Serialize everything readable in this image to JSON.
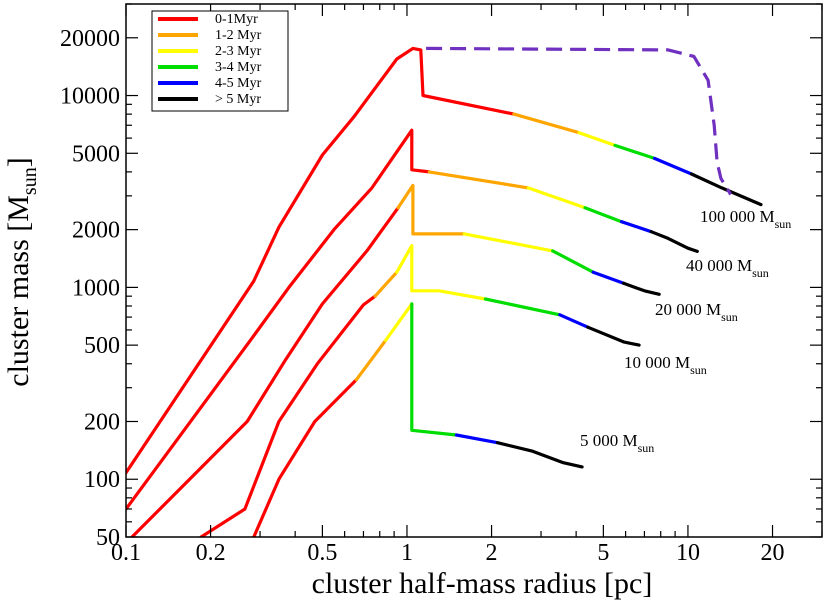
{
  "chart_data": {
    "type": "line",
    "xlabel": "cluster half-mass radius [pc]",
    "ylabel_main": "cluster mass [M",
    "ylabel_sub": "sun",
    "ylabel_close": "]",
    "x_scale": "log",
    "y_scale": "log",
    "xlim": [
      0.1,
      30
    ],
    "ylim": [
      50,
      30000
    ],
    "xticks": [
      {
        "v": 0.1,
        "label": "0.1"
      },
      {
        "v": 0.2,
        "label": "0.2"
      },
      {
        "v": 0.5,
        "label": "0.5"
      },
      {
        "v": 1,
        "label": "1"
      },
      {
        "v": 2,
        "label": "2"
      },
      {
        "v": 5,
        "label": "5"
      },
      {
        "v": 10,
        "label": "10"
      },
      {
        "v": 20,
        "label": "20"
      }
    ],
    "yticks": [
      {
        "v": 50,
        "label": "50"
      },
      {
        "v": 100,
        "label": "100"
      },
      {
        "v": 200,
        "label": "200"
      },
      {
        "v": 500,
        "label": "500"
      },
      {
        "v": 1000,
        "label": "1000"
      },
      {
        "v": 2000,
        "label": "2000"
      },
      {
        "v": 5000,
        "label": "5000"
      },
      {
        "v": 10000,
        "label": "10000"
      },
      {
        "v": 20000,
        "label": "20000"
      }
    ],
    "legend_position": "top-left",
    "legend": [
      {
        "label": "0-1Myr",
        "color": "#ff0000"
      },
      {
        "label": "1-2 Myr",
        "color": "#ffa500"
      },
      {
        "label": "2-3 Myr",
        "color": "#ffff00"
      },
      {
        "label": "3-4 Myr",
        "color": "#00dd00"
      },
      {
        "label": "4-5 Myr",
        "color": "#0000ff"
      },
      {
        "label": "> 5 Myr",
        "color": "#000000"
      }
    ],
    "series": [
      {
        "name": "100 000 Msun",
        "label_main": "100 000 M",
        "label_sub": "sun",
        "segments": [
          {
            "color": "#ff0000",
            "points": [
              [
                0.1,
                108
              ],
              [
                0.285,
                1080
              ],
              [
                0.35,
                2060
              ],
              [
                0.5,
                4900
              ],
              [
                0.65,
                7800
              ],
              [
                0.92,
                15500
              ],
              [
                1.05,
                17600
              ],
              [
                1.12,
                17300
              ],
              [
                1.14,
                10000
              ],
              [
                2.4,
                8000
              ]
            ]
          },
          {
            "color": "#ffa500",
            "points": [
              [
                2.4,
                8000
              ],
              [
                4.1,
                6400
              ]
            ]
          },
          {
            "color": "#ffff00",
            "points": [
              [
                4.1,
                6400
              ],
              [
                5.5,
                5500
              ]
            ]
          },
          {
            "color": "#00dd00",
            "points": [
              [
                5.5,
                5500
              ],
              [
                7.6,
                4700
              ]
            ]
          },
          {
            "color": "#0000ff",
            "points": [
              [
                7.6,
                4700
              ],
              [
                10.3,
                3900
              ]
            ]
          },
          {
            "color": "#000000",
            "points": [
              [
                10.3,
                3900
              ],
              [
                13.2,
                3300
              ],
              [
                18.2,
                2700
              ]
            ]
          }
        ]
      },
      {
        "name": "40 000 Msun",
        "label_main": "40 000 M",
        "label_sub": "sun",
        "segments": [
          {
            "color": "#ff0000",
            "points": [
              [
                0.1,
                70
              ],
              [
                0.28,
                540
              ],
              [
                0.38,
                1000
              ],
              [
                0.55,
                2000
              ],
              [
                0.75,
                3300
              ],
              [
                1.04,
                6600
              ],
              [
                1.04,
                4100
              ],
              [
                1.2,
                4000
              ]
            ]
          },
          {
            "color": "#ffa500",
            "points": [
              [
                1.2,
                4000
              ],
              [
                2.7,
                3300
              ]
            ]
          },
          {
            "color": "#ffff00",
            "points": [
              [
                2.7,
                3300
              ],
              [
                4.3,
                2600
              ]
            ]
          },
          {
            "color": "#00dd00",
            "points": [
              [
                4.3,
                2600
              ],
              [
                5.8,
                2200
              ]
            ]
          },
          {
            "color": "#0000ff",
            "points": [
              [
                5.8,
                2200
              ],
              [
                7.4,
                1950
              ]
            ]
          },
          {
            "color": "#000000",
            "points": [
              [
                7.4,
                1950
              ],
              [
                8.5,
                1800
              ],
              [
                10.0,
                1600
              ],
              [
                10.8,
                1540
              ]
            ]
          }
        ]
      },
      {
        "name": "20 000 Msun",
        "label_main": "20 000 M",
        "label_sub": "sun",
        "segments": [
          {
            "color": "#ff0000",
            "points": [
              [
                0.105,
                50
              ],
              [
                0.27,
                200
              ],
              [
                0.37,
                420
              ],
              [
                0.5,
                820
              ],
              [
                0.72,
                1550
              ],
              [
                0.93,
                2600
              ]
            ]
          },
          {
            "color": "#ffa500",
            "points": [
              [
                0.93,
                2600
              ],
              [
                1.05,
                3400
              ],
              [
                1.05,
                1900
              ],
              [
                1.6,
                1900
              ]
            ]
          },
          {
            "color": "#ffff00",
            "points": [
              [
                1.6,
                1900
              ],
              [
                3.3,
                1550
              ]
            ]
          },
          {
            "color": "#00dd00",
            "points": [
              [
                3.3,
                1550
              ],
              [
                4.6,
                1200
              ]
            ]
          },
          {
            "color": "#0000ff",
            "points": [
              [
                4.6,
                1200
              ],
              [
                5.9,
                1050
              ]
            ]
          },
          {
            "color": "#000000",
            "points": [
              [
                5.9,
                1050
              ],
              [
                7.0,
                960
              ],
              [
                7.9,
                920
              ]
            ]
          }
        ]
      },
      {
        "name": "10 000 Msun",
        "label_main": "10 000 M",
        "label_sub": "sun",
        "segments": [
          {
            "color": "#ff0000",
            "points": [
              [
                0.185,
                50
              ],
              [
                0.265,
                70
              ],
              [
                0.35,
                200
              ],
              [
                0.48,
                400
              ],
              [
                0.7,
                810
              ],
              [
                0.77,
                900
              ]
            ]
          },
          {
            "color": "#ffa500",
            "points": [
              [
                0.77,
                900
              ],
              [
                0.92,
                1200
              ]
            ]
          },
          {
            "color": "#ffff00",
            "points": [
              [
                0.92,
                1200
              ],
              [
                1.04,
                1650
              ],
              [
                1.04,
                960
              ],
              [
                1.3,
                960
              ],
              [
                1.9,
                870
              ]
            ]
          },
          {
            "color": "#00dd00",
            "points": [
              [
                1.9,
                870
              ],
              [
                3.5,
                720
              ]
            ]
          },
          {
            "color": "#0000ff",
            "points": [
              [
                3.5,
                720
              ],
              [
                4.4,
                620
              ]
            ]
          },
          {
            "color": "#000000",
            "points": [
              [
                4.4,
                620
              ],
              [
                5.9,
                520
              ],
              [
                6.7,
                500
              ]
            ]
          }
        ]
      },
      {
        "name": "5 000 Msun",
        "label_main": "5 000 M",
        "label_sub": "sun",
        "segments": [
          {
            "color": "#ff0000",
            "points": [
              [
                0.285,
                50
              ],
              [
                0.35,
                100
              ],
              [
                0.47,
                200
              ],
              [
                0.66,
                330
              ]
            ]
          },
          {
            "color": "#ffa500",
            "points": [
              [
                0.66,
                330
              ],
              [
                0.84,
                530
              ]
            ]
          },
          {
            "color": "#ffff00",
            "points": [
              [
                0.84,
                530
              ],
              [
                1.04,
                820
              ]
            ]
          },
          {
            "color": "#00dd00",
            "points": [
              [
                1.04,
                820
              ],
              [
                1.04,
                180
              ],
              [
                1.5,
                170
              ]
            ]
          },
          {
            "color": "#0000ff",
            "points": [
              [
                1.5,
                170
              ],
              [
                2.1,
                155
              ]
            ]
          },
          {
            "color": "#000000",
            "points": [
              [
                2.1,
                155
              ],
              [
                2.8,
                140
              ],
              [
                3.6,
                122
              ],
              [
                4.2,
                116
              ]
            ]
          }
        ]
      }
    ],
    "dashed_line": {
      "color": "#7030c0",
      "points": [
        [
          1.17,
          17600
        ],
        [
          8.5,
          17300
        ],
        [
          10.5,
          16000
        ],
        [
          11.8,
          12000
        ],
        [
          12.4,
          7000
        ],
        [
          12.7,
          4500
        ],
        [
          13.1,
          3700
        ],
        [
          14.2,
          3050
        ]
      ]
    }
  }
}
